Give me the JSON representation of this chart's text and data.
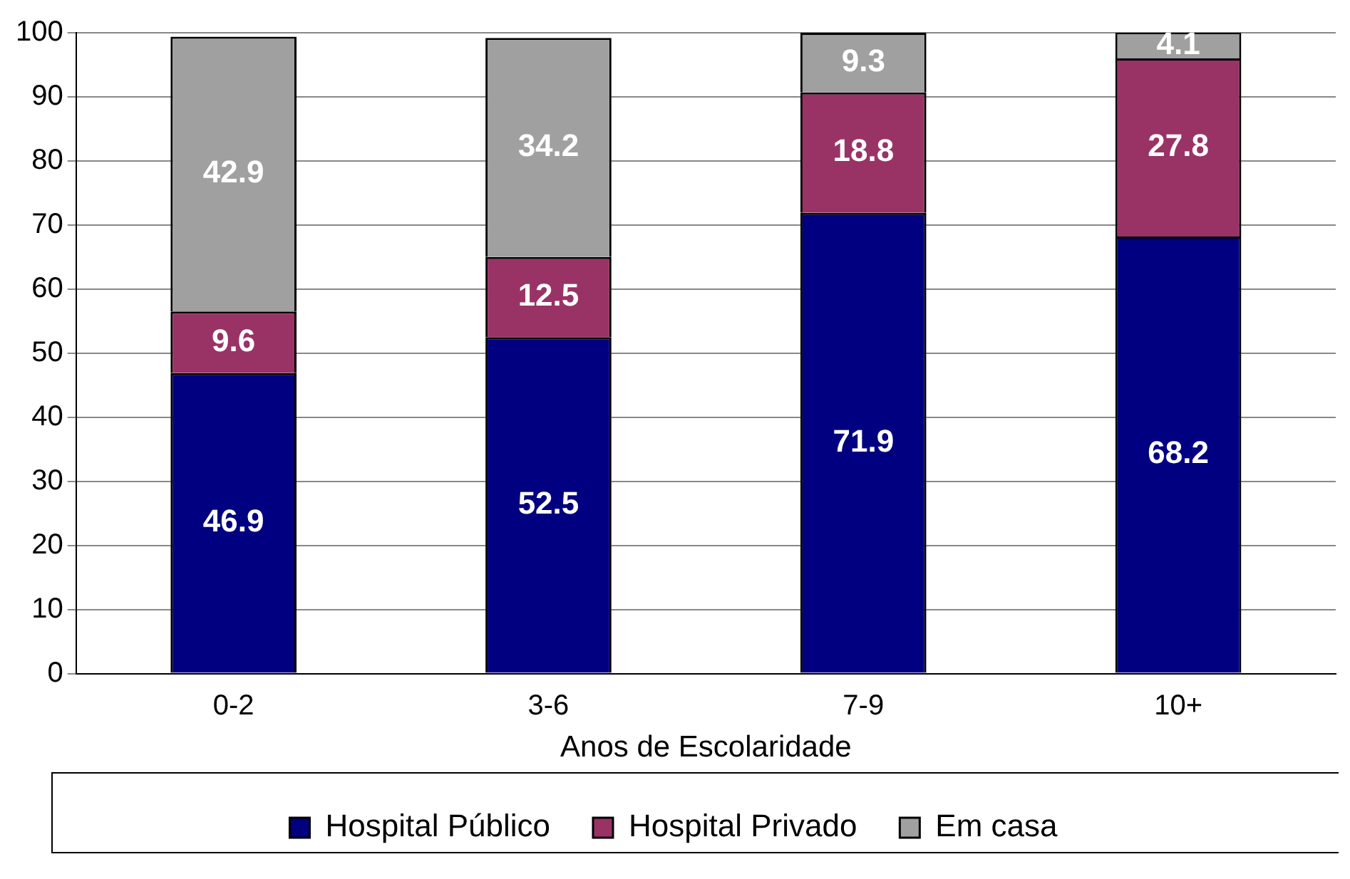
{
  "chart_data": {
    "type": "bar",
    "stacked": true,
    "xlabel": "Anos de Escolaridade",
    "categories": [
      "0-2",
      "3-6",
      "7-9",
      "10+"
    ],
    "series": [
      {
        "name": "Hospital Público",
        "color": "#000080",
        "values": [
          46.9,
          52.5,
          71.9,
          68.2
        ]
      },
      {
        "name": "Hospital Privado",
        "color": "#993366",
        "values": [
          9.6,
          12.5,
          18.8,
          27.8
        ]
      },
      {
        "name": "Em casa",
        "color": "#a0a0a0",
        "values": [
          42.9,
          34.2,
          9.3,
          4.1
        ]
      }
    ],
    "ylim": [
      0,
      100
    ],
    "yticks": [
      0,
      10,
      20,
      30,
      40,
      50,
      60,
      70,
      80,
      90,
      100
    ],
    "grid": "y",
    "legend": "bottom",
    "data_labels": true
  }
}
